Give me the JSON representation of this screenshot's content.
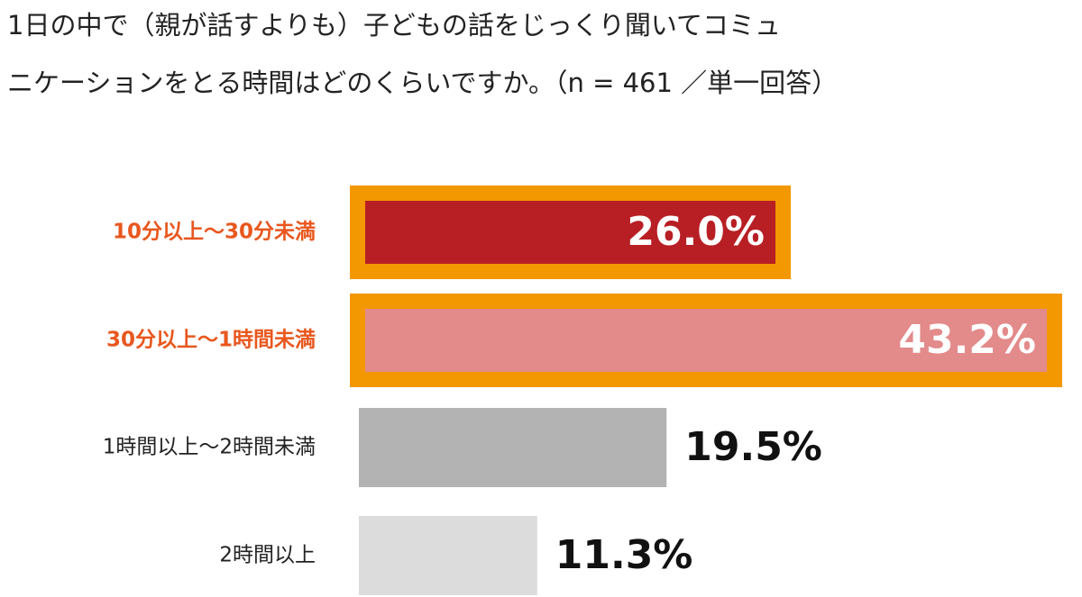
{
  "chart_data": {
    "type": "hbar",
    "title_lines": [
      "1日の中で（親が話すよりも）子どもの話をじっくり聞いてコミュ",
      "ニケーションをとる時間はどのくらいですか。（n = 461 ／単一回答）"
    ],
    "categories": [
      "10分以上～30分未満",
      "30分以上～1時間未満",
      "1時間以上～2時間未満",
      "2時間以上"
    ],
    "values": [
      26.0,
      43.2,
      19.5,
      11.3
    ],
    "value_labels": [
      "26.0%",
      "43.2%",
      "19.5%",
      "11.3%"
    ],
    "colors": [
      "#b81f24",
      "#e38a8a",
      "#b3b3b3",
      "#dcdcdc"
    ],
    "highlight": [
      true,
      true,
      false,
      false
    ],
    "highlight_color": "#f39800",
    "highlight_label_color": "#e8571e",
    "label_color": "#222222"
  }
}
